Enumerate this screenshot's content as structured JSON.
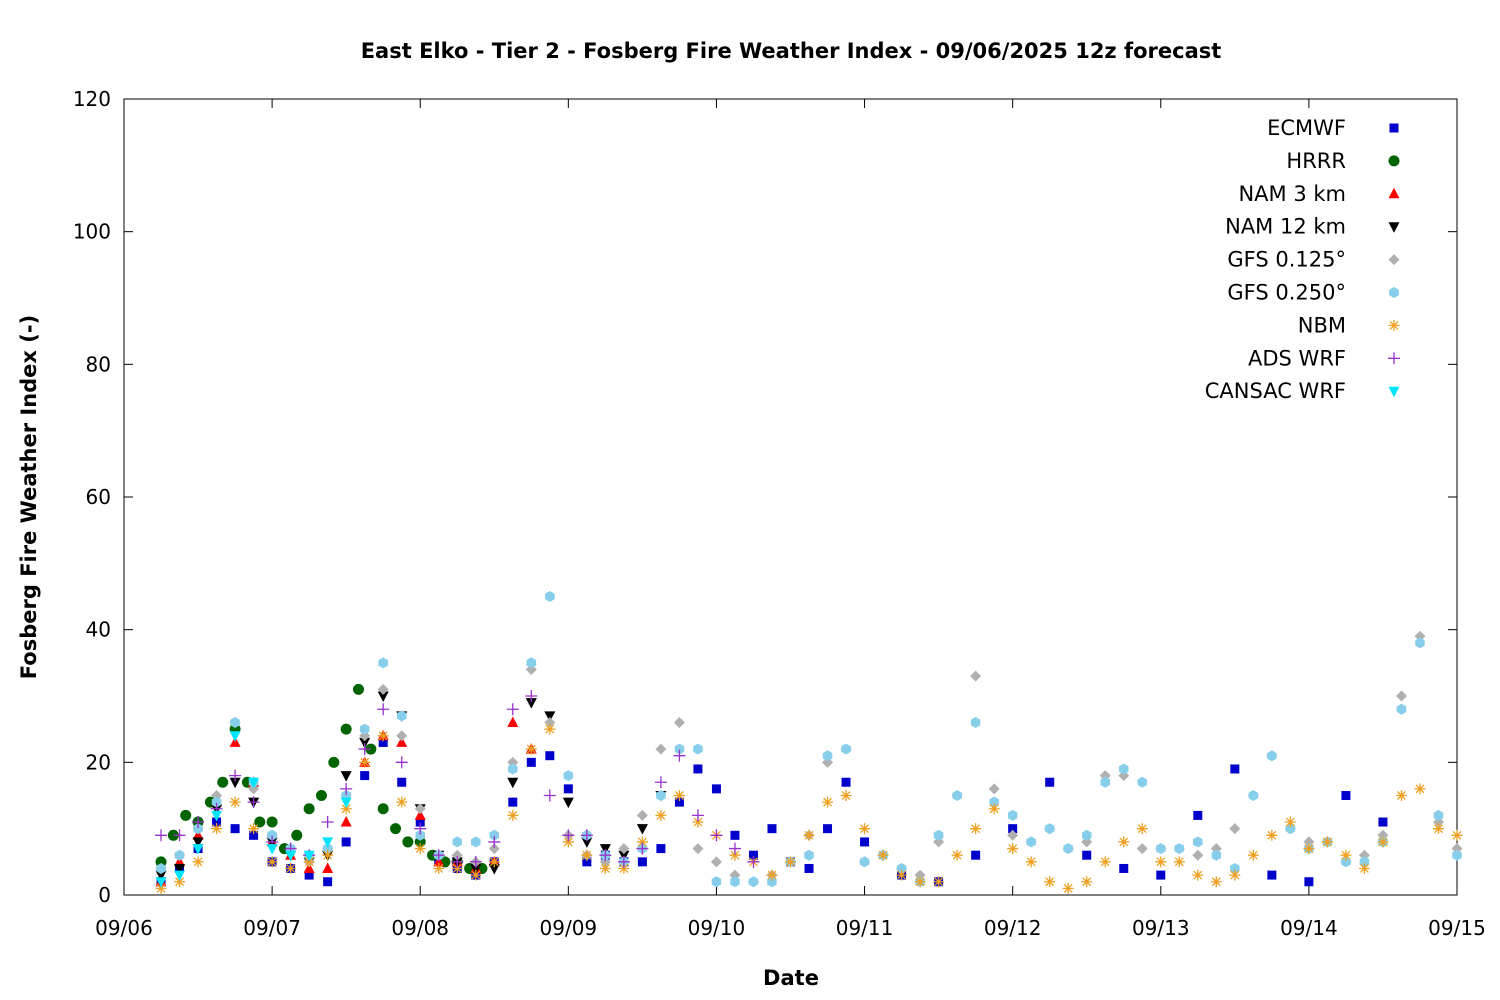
{
  "chart_data": {
    "type": "scatter",
    "title": "East Elko - Tier 2 - Fosberg Fire Weather Index - 09/06/2025 12z forecast",
    "xlabel": "Date",
    "ylabel": "Fosberg Fire Weather Index (-)",
    "xlim": [
      "2025-09-06 00:00",
      "2025-09-15 00:00"
    ],
    "ylim": [
      0,
      120
    ],
    "x_ticks": [
      "09/06",
      "09/07",
      "09/08",
      "09/09",
      "09/10",
      "09/11",
      "09/12",
      "09/13",
      "09/14",
      "09/15"
    ],
    "y_ticks": [
      "0",
      "20",
      "40",
      "60",
      "80",
      "100",
      "120"
    ],
    "grid": false,
    "legend_position": "top-right",
    "series": [
      {
        "name": "ECMWF",
        "marker": "square",
        "color": "#0000cc",
        "x": [
          "09/06 06:00",
          "09/06 09:00",
          "09/06 12:00",
          "09/06 15:00",
          "09/06 18:00",
          "09/06 21:00",
          "09/07 00:00",
          "09/07 03:00",
          "09/07 06:00",
          "09/07 09:00",
          "09/07 12:00",
          "09/07 15:00",
          "09/07 18:00",
          "09/07 21:00",
          "09/08 00:00",
          "09/08 03:00",
          "09/08 06:00",
          "09/08 09:00",
          "09/08 12:00",
          "09/08 15:00",
          "09/08 18:00",
          "09/08 21:00",
          "09/09 00:00",
          "09/09 03:00",
          "09/09 06:00",
          "09/09 09:00",
          "09/09 12:00",
          "09/09 15:00",
          "09/09 18:00",
          "09/09 21:00",
          "09/10 00:00",
          "09/10 03:00",
          "09/10 06:00",
          "09/10 09:00",
          "09/10 12:00",
          "09/10 15:00",
          "09/10 18:00",
          "09/10 21:00",
          "09/11 00:00",
          "09/11 06:00",
          "09/11 12:00",
          "09/11 18:00",
          "09/12 00:00",
          "09/12 06:00",
          "09/12 12:00",
          "09/12 18:00",
          "09/13 00:00",
          "09/13 06:00",
          "09/13 12:00",
          "09/13 18:00",
          "09/14 00:00",
          "09/14 06:00",
          "09/14 12:00"
        ],
        "y": [
          2,
          4,
          7,
          11,
          10,
          9,
          5,
          4,
          3,
          2,
          8,
          18,
          23,
          17,
          11,
          5,
          4,
          3,
          5,
          14,
          20,
          21,
          16,
          5,
          6,
          5,
          5,
          7,
          14,
          19,
          16,
          9,
          6,
          10,
          5,
          4,
          10,
          17,
          8,
          3,
          2,
          6,
          10,
          17,
          6,
          4,
          3,
          12,
          19,
          3,
          2,
          15,
          11
        ]
      },
      {
        "name": "HRRR",
        "marker": "circle",
        "color": "#006400",
        "x": [
          "09/06 06:00",
          "09/06 08:00",
          "09/06 10:00",
          "09/06 12:00",
          "09/06 14:00",
          "09/06 16:00",
          "09/06 18:00",
          "09/06 20:00",
          "09/06 22:00",
          "09/07 00:00",
          "09/07 02:00",
          "09/07 04:00",
          "09/07 06:00",
          "09/07 08:00",
          "09/07 10:00",
          "09/07 12:00",
          "09/07 14:00",
          "09/07 16:00",
          "09/07 18:00",
          "09/07 20:00",
          "09/07 22:00",
          "09/08 00:00",
          "09/08 02:00",
          "09/08 04:00",
          "09/08 06:00",
          "09/08 08:00",
          "09/08 10:00"
        ],
        "y": [
          5,
          9,
          12,
          11,
          14,
          17,
          25,
          17,
          11,
          11,
          7,
          9,
          13,
          15,
          20,
          25,
          31,
          22,
          13,
          10,
          8,
          8,
          6,
          5,
          5,
          4,
          4
        ]
      },
      {
        "name": "NAM 3 km",
        "marker": "triangle-up",
        "color": "#ff0000",
        "x": [
          "09/06 06:00",
          "09/06 09:00",
          "09/06 12:00",
          "09/06 15:00",
          "09/06 18:00",
          "09/06 21:00",
          "09/07 00:00",
          "09/07 03:00",
          "09/07 06:00",
          "09/07 09:00",
          "09/07 12:00",
          "09/07 15:00",
          "09/07 18:00",
          "09/07 21:00",
          "09/08 00:00",
          "09/08 03:00",
          "09/08 06:00",
          "09/08 09:00",
          "09/08 12:00",
          "09/08 15:00",
          "09/08 18:00"
        ],
        "y": [
          2,
          5,
          9,
          14,
          23,
          17,
          8,
          6,
          4,
          4,
          11,
          20,
          24,
          23,
          12,
          5,
          5,
          4,
          5,
          26,
          22
        ]
      },
      {
        "name": "NAM 12 km",
        "marker": "triangle-down",
        "color": "#000000",
        "x": [
          "09/06 06:00",
          "09/06 09:00",
          "09/06 12:00",
          "09/06 15:00",
          "09/06 18:00",
          "09/06 21:00",
          "09/07 00:00",
          "09/07 03:00",
          "09/07 06:00",
          "09/07 09:00",
          "09/07 12:00",
          "09/07 15:00",
          "09/07 18:00",
          "09/07 21:00",
          "09/08 00:00",
          "09/08 03:00",
          "09/08 06:00",
          "09/08 09:00",
          "09/08 12:00",
          "09/08 15:00",
          "09/08 18:00",
          "09/08 21:00",
          "09/09 00:00",
          "09/09 03:00",
          "09/09 06:00",
          "09/09 09:00",
          "09/09 12:00",
          "09/09 15:00"
        ],
        "y": [
          3,
          4,
          8,
          13,
          17,
          14,
          8,
          6,
          5,
          6,
          18,
          23,
          30,
          27,
          13,
          6,
          5,
          4,
          4,
          17,
          29,
          27,
          14,
          8,
          7,
          6,
          10,
          15
        ]
      },
      {
        "name": "GFS 0.125°",
        "marker": "diamond",
        "color": "#b0b0b0",
        "x": [
          "09/06 06:00",
          "09/06 09:00",
          "09/06 12:00",
          "09/06 15:00",
          "09/06 18:00",
          "09/06 21:00",
          "09/07 00:00",
          "09/07 03:00",
          "09/07 06:00",
          "09/07 09:00",
          "09/07 12:00",
          "09/07 15:00",
          "09/07 18:00",
          "09/07 21:00",
          "09/08 00:00",
          "09/08 03:00",
          "09/08 06:00",
          "09/08 09:00",
          "09/08 12:00",
          "09/08 15:00",
          "09/08 18:00",
          "09/08 21:00",
          "09/09 00:00",
          "09/09 03:00",
          "09/09 06:00",
          "09/09 09:00",
          "09/09 12:00",
          "09/09 15:00",
          "09/09 18:00",
          "09/09 21:00",
          "09/10 00:00",
          "09/10 03:00",
          "09/10 06:00",
          "09/10 09:00",
          "09/10 12:00",
          "09/10 15:00",
          "09/10 18:00",
          "09/10 21:00",
          "09/11 00:00",
          "09/11 03:00",
          "09/11 06:00",
          "09/11 09:00",
          "09/11 12:00",
          "09/11 15:00",
          "09/11 18:00",
          "09/11 21:00",
          "09/12 00:00",
          "09/12 03:00",
          "09/12 06:00",
          "09/12 09:00",
          "09/12 12:00",
          "09/12 15:00",
          "09/12 18:00",
          "09/12 21:00",
          "09/13 00:00",
          "09/13 03:00",
          "09/13 06:00",
          "09/13 09:00",
          "09/13 12:00",
          "09/13 15:00",
          "09/13 18:00",
          "09/13 21:00",
          "09/14 00:00",
          "09/14 03:00",
          "09/14 06:00",
          "09/14 09:00",
          "09/14 12:00",
          "09/14 15:00",
          "09/14 18:00",
          "09/14 21:00",
          "09/15 00:00"
        ],
        "y": [
          4,
          6,
          10,
          15,
          26,
          16,
          9,
          7,
          5,
          7,
          15,
          24,
          31,
          24,
          13,
          6,
          6,
          5,
          7,
          20,
          34,
          26,
          9,
          6,
          5,
          7,
          12,
          22,
          26,
          7,
          5,
          3,
          2,
          3,
          5,
          9,
          20,
          22,
          5,
          6,
          4,
          3,
          8,
          15,
          33,
          16,
          9,
          8,
          10,
          7,
          8,
          18,
          18,
          7,
          7,
          7,
          6,
          7,
          10,
          15,
          21,
          10,
          8,
          8,
          5,
          6,
          9,
          30,
          39,
          11,
          7
        ]
      },
      {
        "name": "GFS 0.250°",
        "marker": "hexagon",
        "color": "#87ceeb",
        "x": [
          "09/06 06:00",
          "09/06 09:00",
          "09/06 12:00",
          "09/06 15:00",
          "09/06 18:00",
          "09/06 21:00",
          "09/07 00:00",
          "09/07 03:00",
          "09/07 06:00",
          "09/07 09:00",
          "09/07 12:00",
          "09/07 15:00",
          "09/07 18:00",
          "09/07 21:00",
          "09/08 00:00",
          "09/08 03:00",
          "09/08 06:00",
          "09/08 09:00",
          "09/08 12:00",
          "09/08 15:00",
          "09/08 18:00",
          "09/08 21:00",
          "09/09 00:00",
          "09/09 03:00",
          "09/09 06:00",
          "09/09 09:00",
          "09/09 12:00",
          "09/09 15:00",
          "09/09 18:00",
          "09/09 21:00",
          "09/10 00:00",
          "09/10 03:00",
          "09/10 06:00",
          "09/10 09:00",
          "09/10 12:00",
          "09/10 15:00",
          "09/10 18:00",
          "09/10 21:00",
          "09/11 00:00",
          "09/11 03:00",
          "09/11 06:00",
          "09/11 09:00",
          "09/11 12:00",
          "09/11 15:00",
          "09/11 18:00",
          "09/11 21:00",
          "09/12 00:00",
          "09/12 03:00",
          "09/12 06:00",
          "09/12 09:00",
          "09/12 12:00",
          "09/12 15:00",
          "09/12 18:00",
          "09/12 21:00",
          "09/13 00:00",
          "09/13 03:00",
          "09/13 06:00",
          "09/13 09:00",
          "09/13 12:00",
          "09/13 15:00",
          "09/13 18:00",
          "09/13 21:00",
          "09/14 00:00",
          "09/14 03:00",
          "09/14 06:00",
          "09/14 09:00",
          "09/14 12:00",
          "09/14 15:00",
          "09/14 18:00",
          "09/14 21:00",
          "09/15 00:00"
        ],
        "y": [
          4,
          6,
          10,
          14,
          26,
          17,
          9,
          7,
          6,
          7,
          15,
          25,
          35,
          27,
          9,
          6,
          8,
          8,
          9,
          19,
          35,
          45,
          18,
          9,
          6,
          5,
          7,
          15,
          22,
          22,
          2,
          2,
          2,
          2,
          5,
          6,
          21,
          22,
          5,
          6,
          4,
          2,
          9,
          15,
          26,
          14,
          12,
          8,
          10,
          7,
          9,
          17,
          19,
          17,
          7,
          7,
          8,
          6,
          4,
          15,
          21,
          10,
          7,
          8,
          5,
          5,
          8,
          28,
          38,
          12,
          6
        ]
      },
      {
        "name": "NBM",
        "marker": "star",
        "color": "#f0a020",
        "x": [
          "09/06 06:00",
          "09/06 09:00",
          "09/06 12:00",
          "09/06 15:00",
          "09/06 18:00",
          "09/06 21:00",
          "09/07 00:00",
          "09/07 03:00",
          "09/07 06:00",
          "09/07 09:00",
          "09/07 12:00",
          "09/07 15:00",
          "09/07 18:00",
          "09/07 21:00",
          "09/08 00:00",
          "09/08 03:00",
          "09/08 06:00",
          "09/08 09:00",
          "09/08 12:00",
          "09/08 15:00",
          "09/08 18:00",
          "09/08 21:00",
          "09/09 00:00",
          "09/09 03:00",
          "09/09 06:00",
          "09/09 09:00",
          "09/09 12:00",
          "09/09 15:00",
          "09/09 18:00",
          "09/09 21:00",
          "09/10 00:00",
          "09/10 03:00",
          "09/10 06:00",
          "09/10 09:00",
          "09/10 12:00",
          "09/10 15:00",
          "09/10 18:00",
          "09/10 21:00",
          "09/11 00:00",
          "09/11 03:00",
          "09/11 06:00",
          "09/11 09:00",
          "09/11 12:00",
          "09/11 15:00",
          "09/11 18:00",
          "09/11 21:00",
          "09/12 00:00",
          "09/12 03:00",
          "09/12 06:00",
          "09/12 09:00",
          "09/12 12:00",
          "09/12 15:00",
          "09/12 18:00",
          "09/12 21:00",
          "09/13 00:00",
          "09/13 03:00",
          "09/13 06:00",
          "09/13 09:00",
          "09/13 12:00",
          "09/13 15:00",
          "09/13 18:00",
          "09/13 21:00",
          "09/14 00:00",
          "09/14 03:00",
          "09/14 06:00",
          "09/14 09:00",
          "09/14 12:00",
          "09/14 15:00",
          "09/14 18:00",
          "09/14 21:00",
          "09/15 00:00"
        ],
        "y": [
          1,
          2,
          5,
          10,
          14,
          10,
          5,
          4,
          5,
          6,
          13,
          20,
          24,
          14,
          7,
          4,
          4,
          3,
          5,
          12,
          22,
          25,
          8,
          6,
          4,
          4,
          8,
          12,
          15,
          11,
          9,
          6,
          5,
          3,
          5,
          9,
          14,
          15,
          10,
          6,
          3,
          2,
          2,
          6,
          10,
          13,
          7,
          5,
          2,
          1,
          2,
          5,
          8,
          10,
          5,
          5,
          3,
          2,
          3,
          6,
          9,
          11,
          7,
          8,
          6,
          4,
          8,
          15,
          16,
          10,
          9
        ]
      },
      {
        "name": "ADS WRF",
        "marker": "plus",
        "color": "#9932cc",
        "x": [
          "09/06 06:00",
          "09/06 09:00",
          "09/06 12:00",
          "09/06 15:00",
          "09/06 18:00",
          "09/06 21:00",
          "09/07 00:00",
          "09/07 03:00",
          "09/07 06:00",
          "09/07 09:00",
          "09/07 12:00",
          "09/07 15:00",
          "09/07 18:00",
          "09/07 21:00",
          "09/08 00:00",
          "09/08 03:00",
          "09/08 06:00",
          "09/08 09:00",
          "09/08 12:00",
          "09/08 15:00",
          "09/08 18:00",
          "09/08 21:00",
          "09/09 00:00",
          "09/09 03:00",
          "09/09 06:00",
          "09/09 09:00",
          "09/09 12:00",
          "09/09 15:00",
          "09/09 18:00",
          "09/09 21:00",
          "09/10 00:00",
          "09/10 03:00",
          "09/10 06:00"
        ],
        "y": [
          9,
          9,
          11,
          13,
          18,
          14,
          8,
          7,
          6,
          11,
          16,
          22,
          28,
          20,
          10,
          6,
          5,
          5,
          8,
          28,
          30,
          15,
          9,
          9,
          6,
          5,
          7,
          17,
          21,
          12,
          9,
          7,
          5
        ]
      },
      {
        "name": "CANSAC WRF",
        "marker": "triangle-down",
        "color": "#00e5ff",
        "x": [
          "09/06 06:00",
          "09/06 09:00",
          "09/06 12:00",
          "09/06 15:00",
          "09/06 18:00",
          "09/06 21:00",
          "09/07 00:00",
          "09/07 03:00",
          "09/07 06:00",
          "09/07 09:00",
          "09/07 12:00"
        ],
        "y": [
          2,
          3,
          7,
          12,
          24,
          17,
          7,
          6,
          6,
          8,
          14
        ]
      }
    ]
  }
}
